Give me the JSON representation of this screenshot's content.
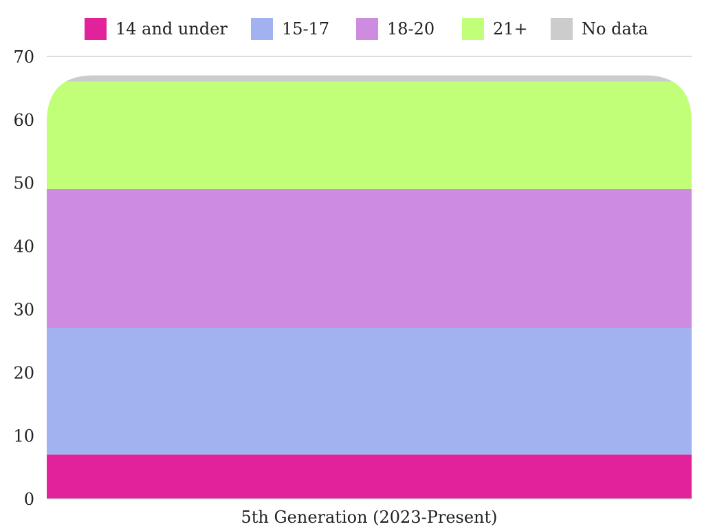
{
  "chart_data": {
    "type": "bar",
    "stacked": true,
    "categories": [
      "5th Generation (2023-Present)"
    ],
    "series": [
      {
        "name": "14 and under",
        "values": [
          7
        ],
        "color": "#e2229b"
      },
      {
        "name": "15-17",
        "values": [
          20
        ],
        "color": "#a2b1f0"
      },
      {
        "name": "18-20",
        "values": [
          22
        ],
        "color": "#cd8ce0"
      },
      {
        "name": "21+",
        "values": [
          17
        ],
        "color": "#c2ff78"
      },
      {
        "name": "No data",
        "values": [
          1
        ],
        "color": "#cccccc"
      }
    ],
    "title": "",
    "xlabel": "",
    "ylabel": "",
    "ylim": [
      0,
      70
    ],
    "yticks": [
      "0",
      "10",
      "20",
      "30",
      "40",
      "50",
      "60",
      "70"
    ],
    "grid": false,
    "legend_position": "top"
  }
}
